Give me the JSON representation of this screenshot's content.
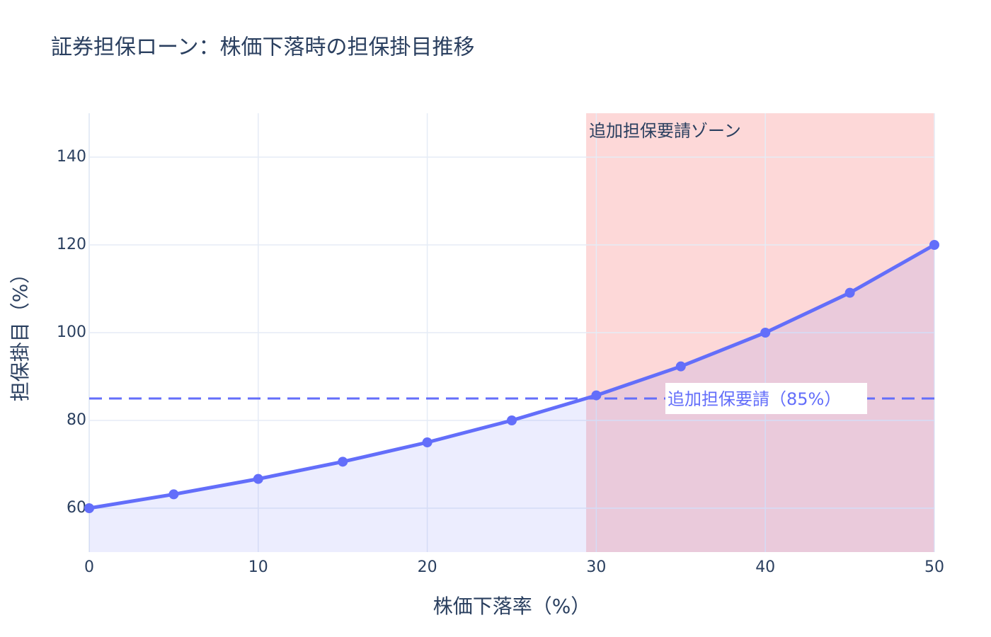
{
  "chart_data": {
    "type": "line",
    "title": "証券担保ローン：株価下落時の担保掛目推移",
    "x_label": "株価下落率（%）",
    "y_label": "担保掛目（%）",
    "x": [
      0,
      5,
      10,
      15,
      20,
      25,
      30,
      35,
      40,
      45,
      50
    ],
    "series": [
      {
        "color": "#636efa",
        "values": [
          60,
          63.16,
          66.67,
          70.59,
          75,
          80,
          85.71,
          92.31,
          100,
          109.09,
          120
        ]
      }
    ],
    "fill_to_bottom": true,
    "xlim": [
      0,
      50
    ],
    "xticks": [
      0,
      10,
      20,
      30,
      40,
      50
    ],
    "ylim": [
      50,
      150
    ],
    "yticks": [
      60,
      80,
      100,
      120,
      140
    ],
    "grid": true,
    "zone": {
      "x0": 29.4,
      "x1": 50,
      "color": "#fdd8d8",
      "label": "追加担保要請ゾーン"
    },
    "threshold": {
      "value": 85,
      "color": "#636efa",
      "label": "追加担保要請（85%）"
    }
  }
}
